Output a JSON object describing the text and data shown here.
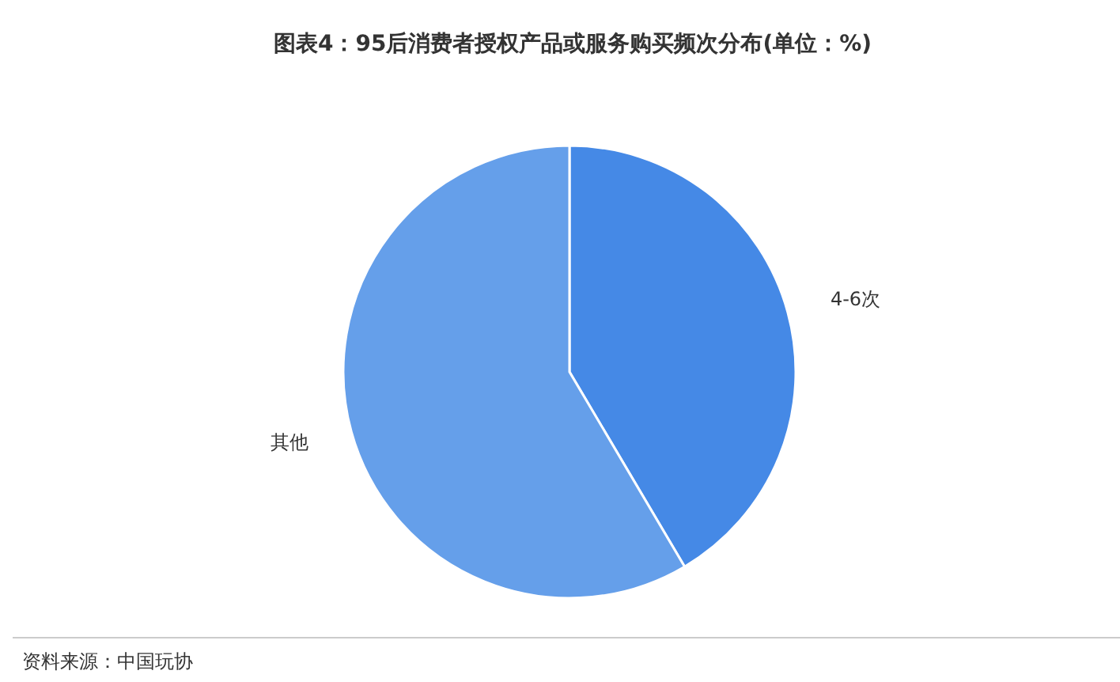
{
  "chart_data": {
    "type": "pie",
    "title": "图表4：95后消费者授权产品或服务购买频次分布(单位：%)",
    "categories": [
      "4-6次",
      "其他"
    ],
    "values": [
      41.5,
      58.5
    ],
    "colors": [
      "#4589e6",
      "#659fea"
    ],
    "annotations": [
      "资料来源：中国玩协"
    ]
  }
}
